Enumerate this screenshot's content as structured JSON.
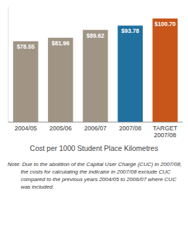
{
  "chart_data": {
    "type": "bar",
    "categories": [
      "2004/05",
      "2005/06",
      "2006/07",
      "2007/08",
      "TARGET\n2007/08"
    ],
    "values": [
      78.55,
      81.96,
      89.62,
      93.78,
      100.7
    ],
    "value_labels": [
      "$78.55",
      "$81.96",
      "$89.62",
      "$93.78",
      "$100.70"
    ],
    "colors": [
      "#a09585",
      "#a09585",
      "#a09585",
      "#2070a0",
      "#c8551a"
    ],
    "data_labels": true,
    "xlabel": "Cost per 1000 Student Place Kilometres",
    "annotations": [
      "Note: Due to the abolition of the Capital User Charge (CUC) in 2007/08, the costs for calculating the indicator in 2007/08 exclude CUC compared to the previous years 2004/05 to 2006/07 where CUC was included."
    ],
    "ylim": [
      0,
      112
    ],
    "tick_labels": "x"
  }
}
